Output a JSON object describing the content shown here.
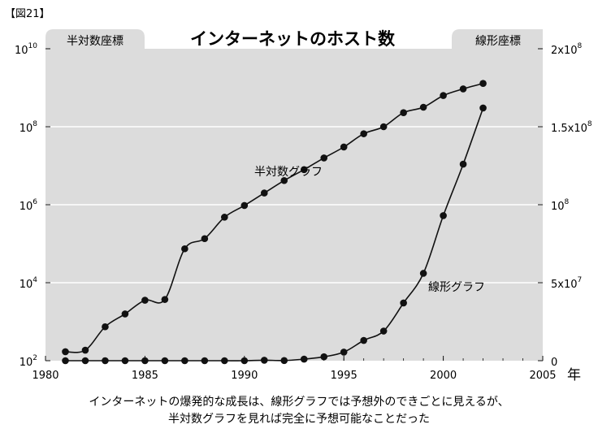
{
  "figure_label": "【図21】",
  "chart_data": {
    "type": "line",
    "title": "インターネットのホスト数",
    "left_axis_tab": "半対数座標",
    "right_axis_tab": "線形座標",
    "x_unit_label": "年",
    "xlim": [
      1980,
      2005
    ],
    "x_ticks": [
      "1980",
      "1985",
      "1990",
      "1995",
      "2000",
      "2005"
    ],
    "left_axis": {
      "scale": "log",
      "range_log10": [
        2,
        10
      ],
      "ticks": [
        {
          "base": "10",
          "exp": "10",
          "log10": 10
        },
        {
          "base": "10",
          "exp": "8",
          "log10": 8
        },
        {
          "base": "10",
          "exp": "6",
          "log10": 6
        },
        {
          "base": "10",
          "exp": "4",
          "log10": 4
        },
        {
          "base": "10",
          "exp": "2",
          "log10": 2
        }
      ]
    },
    "right_axis": {
      "scale": "linear",
      "ylim": [
        0,
        200000000
      ],
      "ticks": [
        {
          "base": "2x10",
          "exp": "8",
          "value": 200000000
        },
        {
          "base": "1.5x10",
          "exp": "8",
          "value": 150000000
        },
        {
          "base": "10",
          "exp": "8",
          "value": 100000000
        },
        {
          "base": "5x10",
          "exp": "7",
          "value": 50000000
        },
        {
          "base": "0",
          "exp": "",
          "value": 0
        }
      ]
    },
    "series": [
      {
        "name": "半対数グラフ",
        "axis": "left",
        "x": [
          1981,
          1982,
          1983,
          1984,
          1985,
          1986,
          1987,
          1988,
          1989,
          1990,
          1991,
          1992,
          1993,
          1994,
          1995,
          1996,
          1997,
          1998,
          1999,
          2000,
          2001,
          2002
        ],
        "log10_y": [
          2.23,
          2.27,
          2.87,
          3.2,
          3.55,
          3.57,
          4.87,
          5.13,
          5.68,
          5.98,
          6.3,
          6.62,
          6.9,
          7.2,
          7.48,
          7.82,
          8.0,
          8.36,
          8.5,
          8.8,
          8.97,
          9.11
        ]
      },
      {
        "name": "線形グラフ",
        "axis": "right",
        "x": [
          1981,
          1982,
          1983,
          1984,
          1985,
          1986,
          1987,
          1988,
          1989,
          1990,
          1991,
          1992,
          1993,
          1994,
          1995,
          1996,
          1997,
          1998,
          1999,
          2000,
          2001,
          2002
        ],
        "values": [
          0,
          0,
          0,
          0,
          0,
          0,
          0,
          0,
          0,
          0,
          300000,
          100000,
          1000000,
          2500000,
          5500000,
          13000000,
          19000000,
          37000000,
          56000000,
          93000000,
          126000000,
          162000000
        ]
      }
    ]
  },
  "caption": {
    "line1": "インターネットの爆発的な成長は、線形グラフでは予想外のできごとに見えるが、",
    "line2": "半対数グラフを見れば完全に予想可能なことだった"
  }
}
